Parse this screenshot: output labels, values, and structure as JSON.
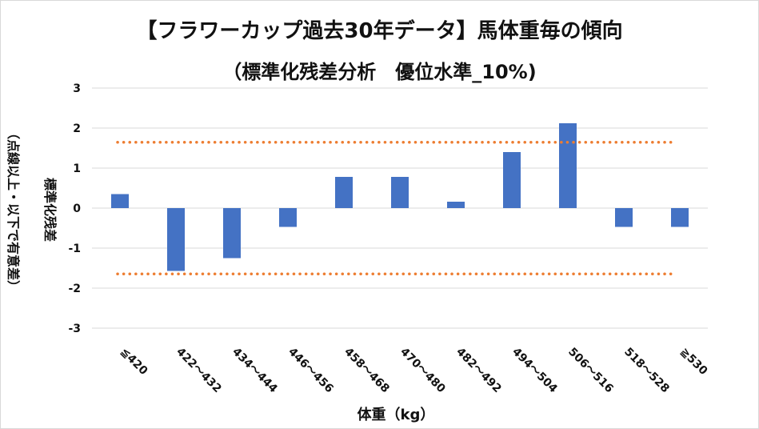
{
  "chart_data": {
    "type": "bar",
    "title": "【フラワーカップ過去30年データ】馬体重毎の傾向",
    "subtitle": "（標準化残差分析　優位水準_10%)",
    "xlabel": "体重（kg）",
    "ylabel": "標準化残差",
    "ylabel_note": "（点線以上・以下で有意差）",
    "categories": [
      "≦420",
      "422～432",
      "434～444",
      "446～456",
      "458～468",
      "470～480",
      "482～492",
      "494～504",
      "506～516",
      "518～528",
      "≧530"
    ],
    "values": [
      0.35,
      -1.57,
      -1.25,
      -0.47,
      0.78,
      0.78,
      0.16,
      1.4,
      2.12,
      -0.47,
      -0.47
    ],
    "ylim": [
      -3,
      3
    ],
    "yticks": [
      "-3",
      "-2",
      "-1",
      "0",
      "1",
      "2",
      "3"
    ],
    "threshold_lines": [
      1.645,
      -1.645
    ],
    "grid": true,
    "colors": {
      "bar": "#4472c4",
      "threshold": "#ed7d31",
      "grid": "#d9d9d9"
    }
  }
}
